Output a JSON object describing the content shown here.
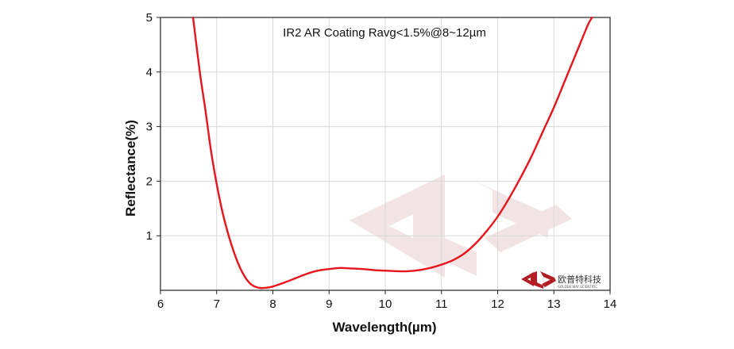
{
  "chart_data": {
    "type": "line",
    "title": "IR2 AR Coating Ravg<1.5%@8~12µm",
    "xlabel": "Wavelength(µm)",
    "ylabel": "Reflectance(%)",
    "xlim": [
      6,
      14
    ],
    "ylim": [
      0,
      5
    ],
    "x_ticks": [
      "6",
      "7",
      "8",
      "9",
      "10",
      "11",
      "12",
      "13",
      "14"
    ],
    "y_ticks": [
      "1",
      "2",
      "3",
      "4",
      "5"
    ],
    "grid": true,
    "series": [
      {
        "color": "#e8141c",
        "x": [
          6.58,
          6.7,
          6.8,
          6.9,
          7.0,
          7.1,
          7.2,
          7.3,
          7.4,
          7.5,
          7.6,
          7.7,
          7.8,
          7.9,
          8.0,
          8.2,
          8.4,
          8.6,
          8.8,
          9.0,
          9.2,
          9.4,
          9.6,
          9.8,
          10.0,
          10.2,
          10.4,
          10.6,
          10.8,
          11.0,
          11.2,
          11.4,
          11.6,
          11.8,
          12.0,
          12.2,
          12.4,
          12.6,
          12.8,
          13.0,
          13.2,
          13.4,
          13.6,
          13.68
        ],
        "y": [
          5.0,
          4.0,
          3.3,
          2.55,
          1.95,
          1.45,
          1.05,
          0.72,
          0.45,
          0.25,
          0.12,
          0.06,
          0.04,
          0.05,
          0.07,
          0.14,
          0.22,
          0.3,
          0.36,
          0.39,
          0.41,
          0.4,
          0.39,
          0.37,
          0.36,
          0.35,
          0.35,
          0.37,
          0.41,
          0.47,
          0.55,
          0.67,
          0.85,
          1.08,
          1.35,
          1.68,
          2.05,
          2.45,
          2.9,
          3.35,
          3.85,
          4.35,
          4.85,
          5.0
        ]
      }
    ]
  },
  "watermark": {
    "color": "#e9cfcf"
  },
  "logo": {
    "name": "欧普特科技",
    "subtitle": "GOLDEN WAY SCIENTIFIC",
    "color": "#b21e24"
  }
}
